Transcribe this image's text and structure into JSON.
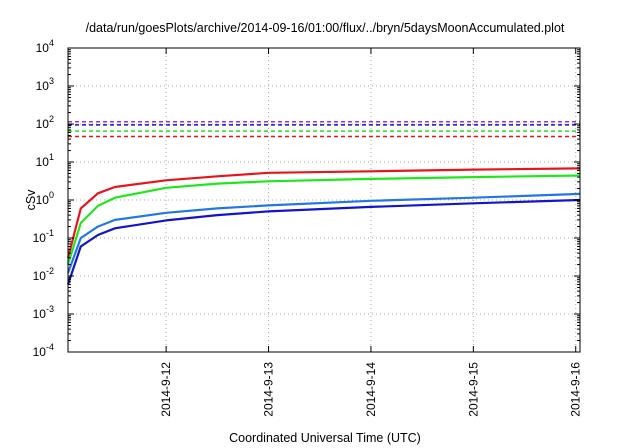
{
  "chart_data": {
    "type": "line",
    "title": "/data/run/goesPlots/archive/2014-09-16/01:00/flux/../bryn/5daysMoonAccumulated.plot",
    "xlabel": "Coordinated Universal Time (UTC)",
    "ylabel": "cSv",
    "y_scale": "log",
    "ylim": [
      0.0001,
      10000
    ],
    "xlim": [
      "2014-09-11T01:00",
      "2014-09-16T01:00"
    ],
    "x_ticks": [
      "2014-9-12",
      "2014-9-13",
      "2014-9-14",
      "2014-9-15",
      "2014-9-16"
    ],
    "y_ticks": [
      {
        "value": 0.0001,
        "base": "10",
        "exp": "-4"
      },
      {
        "value": 0.001,
        "base": "10",
        "exp": "-3"
      },
      {
        "value": 0.01,
        "base": "10",
        "exp": "-2"
      },
      {
        "value": 0.1,
        "base": "10",
        "exp": "-1"
      },
      {
        "value": 1,
        "base": "10",
        "exp": "0"
      },
      {
        "value": 10,
        "base": "10",
        "exp": "1"
      },
      {
        "value": 100,
        "base": "10",
        "exp": "2"
      },
      {
        "value": 1000,
        "base": "10",
        "exp": "3"
      },
      {
        "value": 10000,
        "base": "10",
        "exp": "4"
      }
    ],
    "grid": true,
    "series": [
      {
        "color": "#e8141c",
        "style": "solid",
        "x": [
          "2014-09-11T01:00",
          "2014-09-11T04:00",
          "2014-09-11T08:00",
          "2014-09-11T12:00",
          "2014-09-12T00:00",
          "2014-09-12T12:00",
          "2014-09-13T00:00",
          "2014-09-14T00:00",
          "2014-09-15T00:00",
          "2014-09-16T01:00"
        ],
        "y": [
          0.03,
          0.6,
          1.5,
          2.2,
          3.3,
          4.2,
          5.2,
          5.7,
          6.3,
          6.8
        ]
      },
      {
        "color": "#1ee81a",
        "style": "solid",
        "x": [
          "2014-09-11T01:00",
          "2014-09-11T04:00",
          "2014-09-11T08:00",
          "2014-09-11T12:00",
          "2014-09-12T00:00",
          "2014-09-12T12:00",
          "2014-09-13T00:00",
          "2014-09-14T00:00",
          "2014-09-15T00:00",
          "2014-09-16T01:00"
        ],
        "y": [
          0.02,
          0.25,
          0.7,
          1.15,
          2.1,
          2.7,
          3.1,
          3.6,
          4.0,
          4.4
        ]
      },
      {
        "color": "#2277e6",
        "style": "solid",
        "x": [
          "2014-09-11T01:00",
          "2014-09-11T04:00",
          "2014-09-11T08:00",
          "2014-09-11T12:00",
          "2014-09-12T00:00",
          "2014-09-12T12:00",
          "2014-09-13T00:00",
          "2014-09-14T00:00",
          "2014-09-15T00:00",
          "2014-09-16T01:00"
        ],
        "y": [
          0.012,
          0.1,
          0.2,
          0.3,
          0.46,
          0.6,
          0.72,
          0.95,
          1.15,
          1.45
        ]
      },
      {
        "color": "#1414cc",
        "style": "solid",
        "x": [
          "2014-09-11T01:00",
          "2014-09-11T04:00",
          "2014-09-11T08:00",
          "2014-09-11T12:00",
          "2014-09-12T00:00",
          "2014-09-12T12:00",
          "2014-09-13T00:00",
          "2014-09-14T00:00",
          "2014-09-15T00:00",
          "2014-09-16T01:00"
        ],
        "y": [
          0.006,
          0.06,
          0.12,
          0.18,
          0.29,
          0.4,
          0.5,
          0.66,
          0.82,
          1.0
        ]
      },
      {
        "color": "#9b30d9",
        "style": "dashed",
        "y_const": 115
      },
      {
        "color": "#1414cc",
        "style": "dashed",
        "y_const": 95
      },
      {
        "color": "#1ee81a",
        "style": "dashed",
        "y_const": 65
      },
      {
        "color": "#e8141c",
        "style": "dashed",
        "y_const": 47
      }
    ]
  }
}
